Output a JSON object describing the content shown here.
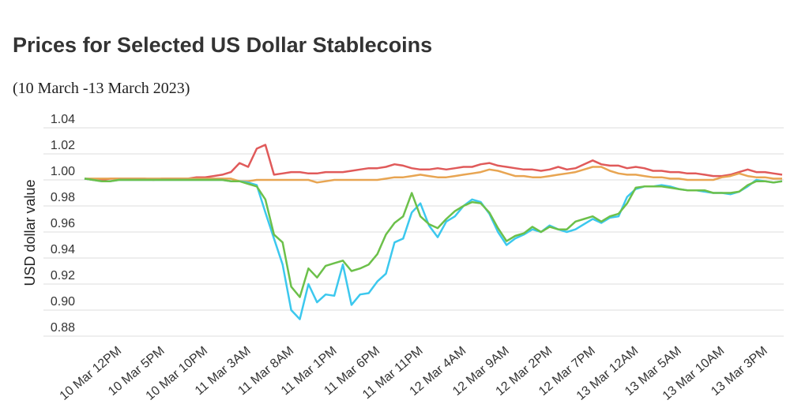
{
  "chart_data": {
    "type": "line",
    "title": "Prices for Selected US Dollar Stablecoins",
    "subtitle": "(10 March -13 March 2023)",
    "y_label": "USD dollar value",
    "categories": [
      null,
      null,
      null,
      null,
      "10 Mar 12PM",
      null,
      null,
      null,
      null,
      "10 Mar 5PM",
      null,
      null,
      null,
      null,
      "10 Mar 10PM",
      null,
      null,
      null,
      null,
      "11 Mar 3AM",
      null,
      null,
      null,
      null,
      "11 Mar 8AM",
      null,
      null,
      null,
      null,
      "11 Mar 1PM",
      null,
      null,
      null,
      null,
      "11 Mar 6PM",
      null,
      null,
      null,
      null,
      "11 Mar 11PM",
      null,
      null,
      null,
      null,
      "12 Mar 4AM",
      null,
      null,
      null,
      null,
      "12 Mar 9AM",
      null,
      null,
      null,
      null,
      "12 Mar 2PM",
      null,
      null,
      null,
      null,
      "12 Mar 7PM",
      null,
      null,
      null,
      null,
      "13 Mar 12AM",
      null,
      null,
      null,
      null,
      "13 Mar 5AM",
      null,
      null,
      null,
      null,
      "13 Mar 10AM",
      null,
      null,
      null,
      null,
      "13 Mar 3PM",
      null,
      null
    ],
    "series": [
      {
        "color": "#e05a5a",
        "values": [
          1.001,
          1.0,
          1.0,
          1.001,
          1.001,
          1.001,
          1.001,
          1.001,
          1.0,
          1.001,
          1.001,
          1.001,
          1.001,
          1.002,
          1.002,
          1.003,
          1.004,
          1.006,
          1.013,
          1.01,
          1.024,
          1.027,
          1.004,
          1.005,
          1.006,
          1.006,
          1.005,
          1.005,
          1.006,
          1.006,
          1.006,
          1.007,
          1.008,
          1.009,
          1.009,
          1.01,
          1.012,
          1.011,
          1.009,
          1.008,
          1.008,
          1.009,
          1.008,
          1.009,
          1.01,
          1.01,
          1.012,
          1.013,
          1.011,
          1.01,
          1.009,
          1.008,
          1.008,
          1.007,
          1.008,
          1.01,
          1.008,
          1.009,
          1.012,
          1.015,
          1.012,
          1.011,
          1.011,
          1.009,
          1.01,
          1.009,
          1.007,
          1.007,
          1.006,
          1.006,
          1.005,
          1.005,
          1.004,
          1.003,
          1.003,
          1.004,
          1.006,
          1.008,
          1.006,
          1.006,
          1.005,
          1.004
        ]
      },
      {
        "color": "#e8a552",
        "values": [
          1.001,
          1.001,
          1.001,
          1.001,
          1.001,
          1.001,
          1.001,
          1.001,
          1.001,
          1.001,
          1.001,
          1.001,
          1.001,
          1.001,
          1.001,
          1.001,
          1.001,
          1.001,
          0.999,
          0.999,
          1.0,
          1.0,
          1.0,
          1.0,
          1.0,
          1.0,
          1.0,
          0.998,
          0.999,
          1.0,
          1.0,
          1.0,
          1.0,
          1.0,
          1.0,
          1.001,
          1.002,
          1.002,
          1.003,
          1.004,
          1.003,
          1.002,
          1.002,
          1.003,
          1.004,
          1.005,
          1.006,
          1.008,
          1.007,
          1.005,
          1.003,
          1.003,
          1.002,
          1.002,
          1.003,
          1.004,
          1.005,
          1.006,
          1.008,
          1.01,
          1.01,
          1.007,
          1.005,
          1.004,
          1.004,
          1.003,
          1.002,
          1.002,
          1.001,
          1.001,
          1.0,
          1.0,
          1.0,
          1.0,
          1.002,
          1.003,
          1.005,
          1.003,
          1.002,
          1.002,
          1.001,
          1.001
        ]
      },
      {
        "color": "#3cc8ee",
        "values": [
          1.001,
          1.0,
          0.999,
          0.999,
          1.0,
          1.0,
          1.0,
          1.0,
          1.0,
          1.0,
          1.0,
          1.0,
          1.0,
          1.0,
          1.0,
          1.0,
          1.0,
          0.999,
          0.999,
          0.998,
          0.996,
          0.975,
          0.955,
          0.935,
          0.9,
          0.893,
          0.92,
          0.906,
          0.912,
          0.911,
          0.935,
          0.904,
          0.912,
          0.913,
          0.922,
          0.928,
          0.952,
          0.955,
          0.975,
          0.982,
          0.965,
          0.956,
          0.968,
          0.972,
          0.98,
          0.985,
          0.983,
          0.974,
          0.96,
          0.95,
          0.955,
          0.958,
          0.962,
          0.96,
          0.965,
          0.962,
          0.96,
          0.962,
          0.966,
          0.97,
          0.967,
          0.971,
          0.972,
          0.987,
          0.993,
          0.995,
          0.995,
          0.996,
          0.995,
          0.993,
          0.992,
          0.992,
          0.991,
          0.99,
          0.99,
          0.989,
          0.991,
          0.995,
          1.0,
          0.999,
          0.998,
          0.999
        ]
      },
      {
        "color": "#6cc04a",
        "values": [
          1.001,
          1.0,
          0.999,
          0.999,
          1.0,
          1.0,
          1.0,
          1.0,
          1.0,
          1.0,
          1.0,
          1.0,
          1.0,
          1.0,
          1.0,
          1.0,
          1.0,
          0.999,
          0.999,
          0.997,
          0.995,
          0.985,
          0.958,
          0.952,
          0.918,
          0.91,
          0.932,
          0.925,
          0.934,
          0.936,
          0.938,
          0.93,
          0.932,
          0.935,
          0.943,
          0.958,
          0.967,
          0.972,
          0.99,
          0.972,
          0.966,
          0.963,
          0.97,
          0.976,
          0.98,
          0.983,
          0.982,
          0.975,
          0.963,
          0.953,
          0.957,
          0.959,
          0.964,
          0.96,
          0.964,
          0.962,
          0.962,
          0.968,
          0.97,
          0.972,
          0.968,
          0.972,
          0.974,
          0.982,
          0.994,
          0.995,
          0.995,
          0.995,
          0.994,
          0.993,
          0.992,
          0.992,
          0.992,
          0.99,
          0.99,
          0.99,
          0.991,
          0.996,
          0.999,
          0.999,
          0.998,
          0.999
        ]
      }
    ],
    "ylim": [
      0.88,
      1.04
    ],
    "yticks": [
      {
        "value": 0.88,
        "label": "0.88"
      },
      {
        "value": 0.9,
        "label": "0.90"
      },
      {
        "value": 0.92,
        "label": "0.92"
      },
      {
        "value": 0.94,
        "label": "0.94"
      },
      {
        "value": 0.96,
        "label": "0.96"
      },
      {
        "value": 0.98,
        "label": "0.98"
      },
      {
        "value": 1.0,
        "label": "1.00"
      },
      {
        "value": 1.02,
        "label": "1.02"
      },
      {
        "value": 1.04,
        "label": "1.04"
      }
    ],
    "grid": true
  }
}
